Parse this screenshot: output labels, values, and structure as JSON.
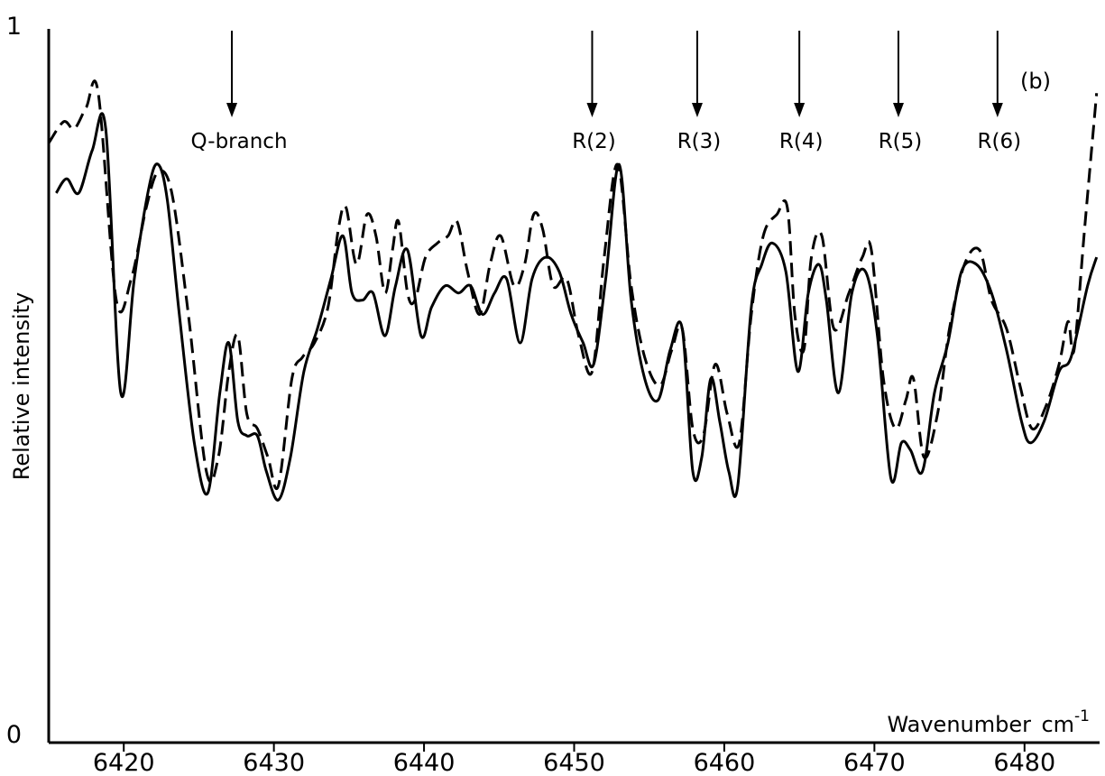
{
  "chart_data": {
    "type": "line",
    "title": "",
    "panel_label": "(b)",
    "xlabel": "Wavenumber",
    "xlabel_unit": "cm",
    "xlabel_unit_exp": "-1",
    "ylabel": "Relative intensity",
    "xlim": [
      6415,
      6485
    ],
    "ylim": [
      0,
      1
    ],
    "xticks": [
      6420,
      6430,
      6440,
      6450,
      6460,
      6470,
      6480
    ],
    "xtick_labels": [
      "6420",
      "6430",
      "6440",
      "6450",
      "6460",
      "6470",
      "6480"
    ],
    "yticks": [
      0,
      1
    ],
    "ytick_labels": [
      "0",
      "1"
    ],
    "grid": false,
    "annotations": [
      {
        "label": "Q-branch",
        "x": 6427.2
      },
      {
        "label": "R(2)",
        "x": 6451.2
      },
      {
        "label": "R(3)",
        "x": 6458.2
      },
      {
        "label": "R(4)",
        "x": 6465.0
      },
      {
        "label": "R(5)",
        "x": 6471.6
      },
      {
        "label": "R(6)",
        "x": 6478.2
      }
    ],
    "series": [
      {
        "style": "solid",
        "x": [
          6415.5,
          6416.2,
          6417.0,
          6417.9,
          6418.8,
          6419.8,
          6420.7,
          6421.7,
          6422.3,
          6422.9,
          6423.7,
          6424.7,
          6425.6,
          6426.4,
          6427.0,
          6427.6,
          6428.2,
          6428.9,
          6429.5,
          6430.3,
          6431.1,
          6432.0,
          6432.9,
          6433.8,
          6434.6,
          6435.2,
          6435.9,
          6436.6,
          6437.4,
          6438.1,
          6438.9,
          6439.8,
          6440.5,
          6441.4,
          6442.3,
          6443.1,
          6443.9,
          6444.7,
          6445.5,
          6446.4,
          6447.2,
          6448.1,
          6449.0,
          6449.8,
          6450.6,
          6451.3,
          6452.1,
          6453.0,
          6453.8,
          6454.7,
          6455.6,
          6456.4,
          6457.2,
          6457.9,
          6458.5,
          6459.1,
          6459.7,
          6460.3,
          6460.9,
          6461.8,
          6462.5,
          6463.2,
          6464.1,
          6464.9,
          6465.6,
          6466.3,
          6466.8,
          6467.6,
          6468.5,
          6469.4,
          6470.2,
          6471.1,
          6471.8,
          6472.4,
          6473.2,
          6474.0,
          6474.9,
          6475.8,
          6476.8,
          6477.8,
          6478.8,
          6479.8,
          6480.4,
          6481.3,
          6482.3,
          6483.1,
          6484.2,
          6484.8
        ],
        "y": [
          0.77,
          0.79,
          0.77,
          0.83,
          0.86,
          0.49,
          0.65,
          0.78,
          0.81,
          0.76,
          0.6,
          0.42,
          0.35,
          0.49,
          0.56,
          0.45,
          0.43,
          0.43,
          0.38,
          0.34,
          0.4,
          0.52,
          0.58,
          0.65,
          0.71,
          0.63,
          0.62,
          0.63,
          0.57,
          0.64,
          0.69,
          0.57,
          0.61,
          0.64,
          0.63,
          0.64,
          0.6,
          0.63,
          0.65,
          0.56,
          0.65,
          0.68,
          0.66,
          0.6,
          0.56,
          0.53,
          0.65,
          0.81,
          0.62,
          0.51,
          0.48,
          0.55,
          0.58,
          0.38,
          0.4,
          0.51,
          0.45,
          0.38,
          0.36,
          0.61,
          0.67,
          0.7,
          0.66,
          0.52,
          0.63,
          0.67,
          0.62,
          0.49,
          0.63,
          0.66,
          0.57,
          0.37,
          0.42,
          0.41,
          0.38,
          0.49,
          0.56,
          0.66,
          0.67,
          0.63,
          0.55,
          0.45,
          0.42,
          0.45,
          0.52,
          0.54,
          0.64,
          0.68
        ]
      },
      {
        "style": "dashed",
        "x": [
          6415.0,
          6416.0,
          6416.7,
          6417.5,
          6418.3,
          6419.5,
          6420.5,
          6421.5,
          6422.3,
          6423.2,
          6424.3,
          6425.5,
          6426.3,
          6427.0,
          6427.6,
          6428.2,
          6428.9,
          6429.6,
          6430.3,
          6431.2,
          6431.9,
          6432.7,
          6433.6,
          6434.3,
          6434.8,
          6435.5,
          6436.2,
          6436.8,
          6437.4,
          6437.9,
          6438.3,
          6438.9,
          6439.4,
          6440.1,
          6440.9,
          6441.6,
          6442.2,
          6442.9,
          6443.7,
          6444.4,
          6445.1,
          6446.0,
          6446.7,
          6447.3,
          6447.9,
          6448.6,
          6449.5,
          6450.3,
          6451.2,
          6452.0,
          6452.9,
          6453.8,
          6454.7,
          6455.7,
          6456.5,
          6457.2,
          6457.9,
          6458.6,
          6459.4,
          6460.2,
          6461.0,
          6461.8,
          6462.6,
          6463.5,
          6464.2,
          6464.7,
          6465.3,
          6465.8,
          6466.5,
          6467.3,
          6468.3,
          6469.2,
          6469.8,
          6470.6,
          6471.4,
          6472.1,
          6472.6,
          6473.3,
          6474.2,
          6475.0,
          6476.0,
          6477.0,
          6477.8,
          6478.8,
          6479.7,
          6480.5,
          6481.4,
          6482.3,
          6482.9,
          6483.3,
          6484.0,
          6484.8
        ],
        "y": [
          0.84,
          0.87,
          0.86,
          0.89,
          0.91,
          0.62,
          0.65,
          0.75,
          0.8,
          0.77,
          0.6,
          0.38,
          0.4,
          0.52,
          0.57,
          0.46,
          0.44,
          0.4,
          0.36,
          0.51,
          0.54,
          0.56,
          0.61,
          0.72,
          0.75,
          0.67,
          0.74,
          0.71,
          0.63,
          0.69,
          0.73,
          0.63,
          0.62,
          0.68,
          0.7,
          0.71,
          0.73,
          0.66,
          0.6,
          0.67,
          0.71,
          0.64,
          0.67,
          0.74,
          0.72,
          0.64,
          0.65,
          0.57,
          0.52,
          0.68,
          0.81,
          0.64,
          0.54,
          0.5,
          0.55,
          0.58,
          0.44,
          0.43,
          0.53,
          0.46,
          0.42,
          0.6,
          0.71,
          0.74,
          0.75,
          0.6,
          0.55,
          0.68,
          0.71,
          0.58,
          0.63,
          0.68,
          0.69,
          0.51,
          0.44,
          0.48,
          0.51,
          0.4,
          0.46,
          0.58,
          0.67,
          0.69,
          0.62,
          0.58,
          0.5,
          0.44,
          0.47,
          0.53,
          0.59,
          0.55,
          0.72,
          0.91
        ]
      }
    ]
  }
}
